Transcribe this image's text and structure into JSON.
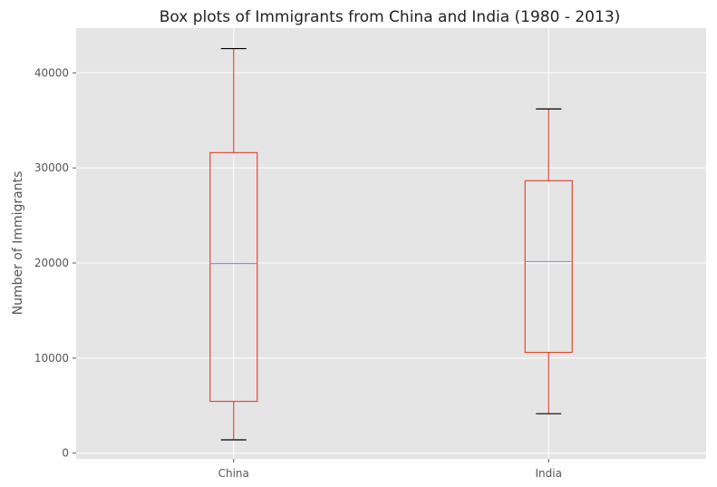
{
  "chart_data": {
    "type": "box",
    "title": "Box plots of Immigrants from China and India (1980 - 2013)",
    "xlabel": "",
    "ylabel": "Number of Immigrants",
    "ylim": [
      -600,
      44700
    ],
    "yticks": [
      0,
      10000,
      20000,
      30000,
      40000
    ],
    "grid": true,
    "categories": [
      "China",
      "India"
    ],
    "boxes": [
      {
        "category": "China",
        "whisker_low": 1400,
        "q1": 5450,
        "median": 19950,
        "q3": 31600,
        "whisker_high": 42550
      },
      {
        "category": "India",
        "whisker_low": 4150,
        "q1": 10600,
        "median": 20150,
        "q3": 28650,
        "whisker_high": 36200
      }
    ],
    "colors": {
      "background": "#e5e5e5",
      "grid": "#ffffff",
      "box": "#e24a33",
      "median": "#8eba42",
      "median_line": "#988ed5",
      "cap": "#000000",
      "tick_text": "#555555"
    }
  }
}
